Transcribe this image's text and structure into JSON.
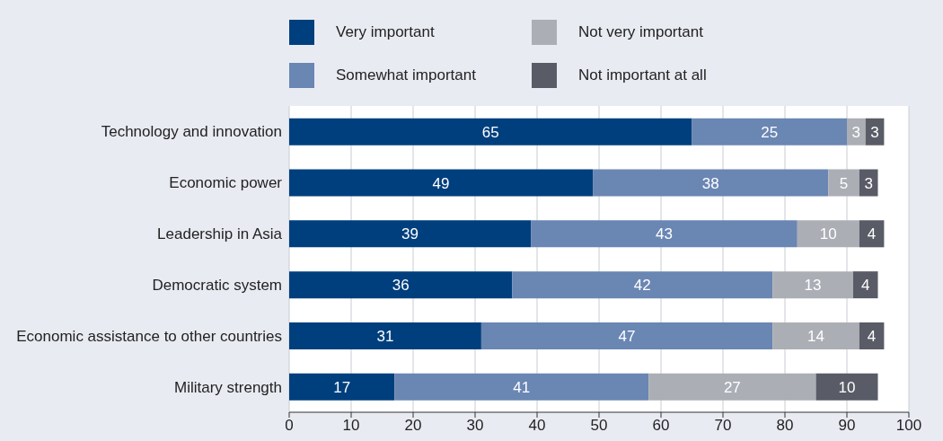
{
  "chart_data": {
    "type": "bar",
    "orientation": "horizontal",
    "stacked": true,
    "categories": [
      "Technology and innovation",
      "Economic power",
      "Leadership in Asia",
      "Democratic system",
      "Economic assistance to other countries",
      "Military strength"
    ],
    "series": [
      {
        "name": "Very important",
        "color": "#003f7d",
        "values": [
          65,
          49,
          39,
          36,
          31,
          17
        ]
      },
      {
        "name": "Somewhat important",
        "color": "#6a86b3",
        "values": [
          25,
          38,
          43,
          42,
          47,
          41
        ]
      },
      {
        "name": "Not very important",
        "color": "#abaeb5",
        "values": [
          3,
          5,
          10,
          13,
          14,
          27
        ]
      },
      {
        "name": "Not important at all",
        "color": "#595c66",
        "values": [
          3,
          3,
          4,
          4,
          4,
          10
        ]
      }
    ],
    "xlim": [
      0,
      100
    ],
    "xticks": [
      0,
      10,
      20,
      30,
      40,
      50,
      60,
      70,
      80,
      90,
      100
    ],
    "grid": "x",
    "legend": "top",
    "data_labels": true
  }
}
